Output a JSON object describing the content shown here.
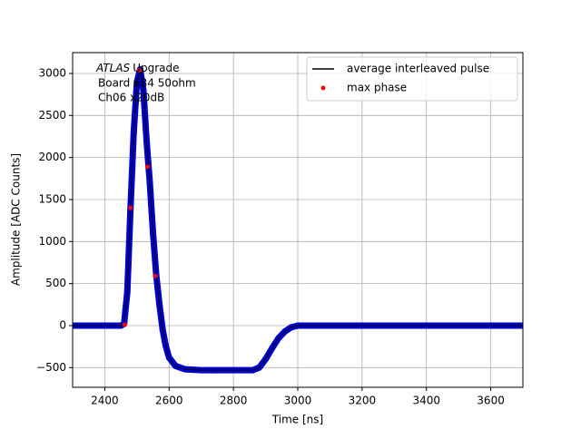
{
  "chart_data": {
    "type": "line",
    "xlabel": "Time [ns]",
    "ylabel": "Amplitude [ADC Counts]",
    "annotation": [
      "ATLAS",
      "Upgrade",
      "Board 634 50ohm",
      "Ch06 x20dB"
    ],
    "xlim": [
      2300,
      3700
    ],
    "xticks": [
      2400,
      2600,
      2800,
      3000,
      3200,
      3400,
      3600
    ],
    "ylim": [
      -734,
      3248
    ],
    "yticks": [
      {
        "value": -500,
        "label": "−500"
      },
      0,
      500,
      1000,
      1500,
      2000,
      2500,
      3000
    ],
    "grid": true,
    "legend": "upper right",
    "series": [
      {
        "name": "average interleaved pulse",
        "color": "#000000",
        "marker_color": "#0000cc",
        "x": [
          2300,
          2350,
          2400,
          2450,
          2460,
          2470,
          2480,
          2490,
          2500,
          2510,
          2520,
          2530,
          2540,
          2550,
          2560,
          2570,
          2580,
          2590,
          2600,
          2620,
          2650,
          2700,
          2750,
          2800,
          2860,
          2880,
          2900,
          2920,
          2940,
          2960,
          2980,
          3000,
          3100,
          3200,
          3300,
          3400,
          3500,
          3600,
          3700
        ],
        "values": [
          0,
          0,
          0,
          0,
          20,
          400,
          1400,
          2300,
          2900,
          3050,
          2800,
          2200,
          1700,
          1100,
          600,
          250,
          -50,
          -250,
          -380,
          -480,
          -520,
          -530,
          -530,
          -530,
          -530,
          -500,
          -400,
          -270,
          -150,
          -70,
          -20,
          0,
          0,
          0,
          0,
          0,
          0,
          0,
          0
        ]
      },
      {
        "name": "max phase",
        "color": "#ff0000",
        "marker": "dot",
        "x": [
          2462,
          2480,
          2507,
          2533,
          2557
        ],
        "values": [
          10,
          1400,
          3040,
          1890,
          590
        ]
      }
    ]
  }
}
